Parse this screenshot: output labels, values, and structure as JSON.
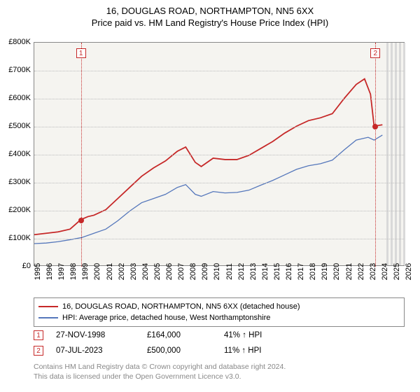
{
  "title": "16, DOUGLAS ROAD, NORTHAMPTON, NN5 6XX",
  "subtitle": "Price paid vs. HM Land Registry's House Price Index (HPI)",
  "chart": {
    "type": "line",
    "background_color": "#f5f4f0",
    "grid_color": "#bbbbbb",
    "border_color": "#888888",
    "ylim": [
      0,
      800000
    ],
    "yticks": [
      0,
      100000,
      200000,
      300000,
      400000,
      500000,
      600000,
      700000,
      800000
    ],
    "ytick_labels": [
      "£0",
      "£100K",
      "£200K",
      "£300K",
      "£400K",
      "£500K",
      "£600K",
      "£700K",
      "£800K"
    ],
    "xlim": [
      1995,
      2026
    ],
    "xticks": [
      1995,
      1996,
      1997,
      1998,
      1999,
      2000,
      2001,
      2002,
      2003,
      2004,
      2005,
      2006,
      2007,
      2008,
      2009,
      2010,
      2011,
      2012,
      2013,
      2014,
      2015,
      2016,
      2017,
      2018,
      2019,
      2020,
      2021,
      2022,
      2023,
      2024,
      2025,
      2026
    ],
    "label_fontsize": 11,
    "future_start": 2024.4,
    "future_fill": "#d9d9d9",
    "series": [
      {
        "name": "price_paid",
        "color": "#c62828",
        "width": 1.8,
        "points": [
          [
            1995,
            110000
          ],
          [
            1996,
            115000
          ],
          [
            1997,
            120000
          ],
          [
            1998,
            130000
          ],
          [
            1998.9,
            164000
          ],
          [
            1999.5,
            175000
          ],
          [
            2000,
            180000
          ],
          [
            2001,
            200000
          ],
          [
            2002,
            240000
          ],
          [
            2003,
            280000
          ],
          [
            2004,
            320000
          ],
          [
            2005,
            350000
          ],
          [
            2006,
            375000
          ],
          [
            2007,
            410000
          ],
          [
            2007.7,
            425000
          ],
          [
            2008.5,
            370000
          ],
          [
            2009,
            355000
          ],
          [
            2010,
            385000
          ],
          [
            2011,
            380000
          ],
          [
            2012,
            380000
          ],
          [
            2013,
            395000
          ],
          [
            2014,
            420000
          ],
          [
            2015,
            445000
          ],
          [
            2016,
            475000
          ],
          [
            2017,
            500000
          ],
          [
            2018,
            520000
          ],
          [
            2019,
            530000
          ],
          [
            2020,
            545000
          ],
          [
            2021,
            600000
          ],
          [
            2022,
            650000
          ],
          [
            2022.7,
            670000
          ],
          [
            2023.2,
            615000
          ],
          [
            2023.5,
            500000
          ],
          [
            2024.2,
            505000
          ]
        ]
      },
      {
        "name": "hpi",
        "color": "#5577bb",
        "width": 1.3,
        "points": [
          [
            1995,
            78000
          ],
          [
            1996,
            80000
          ],
          [
            1997,
            85000
          ],
          [
            1998,
            92000
          ],
          [
            1999,
            100000
          ],
          [
            2000,
            115000
          ],
          [
            2001,
            130000
          ],
          [
            2002,
            160000
          ],
          [
            2003,
            195000
          ],
          [
            2004,
            225000
          ],
          [
            2005,
            240000
          ],
          [
            2006,
            255000
          ],
          [
            2007,
            280000
          ],
          [
            2007.7,
            290000
          ],
          [
            2008.5,
            255000
          ],
          [
            2009,
            248000
          ],
          [
            2010,
            265000
          ],
          [
            2011,
            260000
          ],
          [
            2012,
            262000
          ],
          [
            2013,
            270000
          ],
          [
            2014,
            288000
          ],
          [
            2015,
            305000
          ],
          [
            2016,
            325000
          ],
          [
            2017,
            345000
          ],
          [
            2018,
            358000
          ],
          [
            2019,
            365000
          ],
          [
            2020,
            378000
          ],
          [
            2021,
            415000
          ],
          [
            2022,
            450000
          ],
          [
            2023,
            460000
          ],
          [
            2023.5,
            450000
          ],
          [
            2024.2,
            468000
          ]
        ]
      }
    ],
    "markers": [
      {
        "id": "1",
        "x": 1998.9,
        "y": 164000
      },
      {
        "id": "2",
        "x": 2023.5,
        "y": 500000
      }
    ]
  },
  "legend": {
    "items": [
      {
        "color": "#c62828",
        "label": "16, DOUGLAS ROAD, NORTHAMPTON, NN5 6XX (detached house)"
      },
      {
        "color": "#5577bb",
        "label": "HPI: Average price, detached house, West Northamptonshire"
      }
    ]
  },
  "data_points": [
    {
      "id": "1",
      "date": "27-NOV-1998",
      "price": "£164,000",
      "pct": "41% ↑ HPI"
    },
    {
      "id": "2",
      "date": "07-JUL-2023",
      "price": "£500,000",
      "pct": "11% ↑ HPI"
    }
  ],
  "footnote_line1": "Contains HM Land Registry data © Crown copyright and database right 2024.",
  "footnote_line2": "This data is licensed under the Open Government Licence v3.0."
}
